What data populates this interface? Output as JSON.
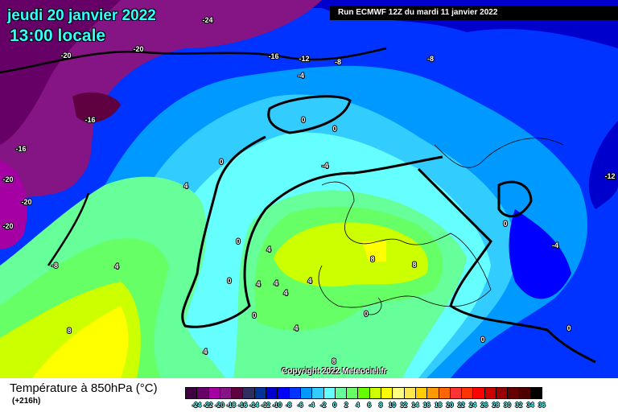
{
  "header": {
    "date": "jeudi 20 janvier 2022",
    "time": "13:00 locale",
    "run": "Run ECMWF 12Z du mardi 11 janvier 2022"
  },
  "copyright": "Copyright 2022 Meteociel.fr",
  "footer": {
    "variable": "Température à 850hPa (°C)",
    "lead_time": "(+216h)"
  },
  "legend": {
    "colors": [
      "#3f0040",
      "#660066",
      "#a400a4",
      "#851585",
      "#5f0040",
      "#2e2e60",
      "#003399",
      "#0000cc",
      "#0000ff",
      "#0033ff",
      "#0099ff",
      "#33ccff",
      "#66ffff",
      "#66ff99",
      "#66ff66",
      "#66ff00",
      "#ccff00",
      "#ffff00",
      "#ffff80",
      "#ffe64d",
      "#ffcc00",
      "#ff9900",
      "#ff6600",
      "#ff3333",
      "#ff3300",
      "#ff0000",
      "#cc0000",
      "#990000",
      "#660000",
      "#4d0000",
      "#000000"
    ],
    "ticks": [
      "-24",
      "-22",
      "-20",
      "-18",
      "-16",
      "-14",
      "-12",
      "-10",
      "-8",
      "-6",
      "-4",
      "-2",
      "0",
      "2",
      "4",
      "6",
      "8",
      "10",
      "12",
      "14",
      "16",
      "18",
      "20",
      "22",
      "24",
      "26",
      "28",
      "30",
      "32",
      "34",
      "36"
    ]
  },
  "contour_labels": [
    "-20",
    "-24",
    "-20",
    "-16",
    "-12",
    "-8",
    "-8",
    "-4",
    "-16",
    "-16",
    "0",
    "0",
    "-4",
    "0",
    "-20",
    "-20",
    "-20",
    "4",
    "-8",
    "4",
    "0",
    "4",
    "0",
    "4",
    "4",
    "4",
    "4",
    "8",
    "8",
    "0",
    "0",
    "4",
    "0",
    "8",
    "-12",
    "0",
    "-4",
    "0",
    "4",
    "8"
  ]
}
